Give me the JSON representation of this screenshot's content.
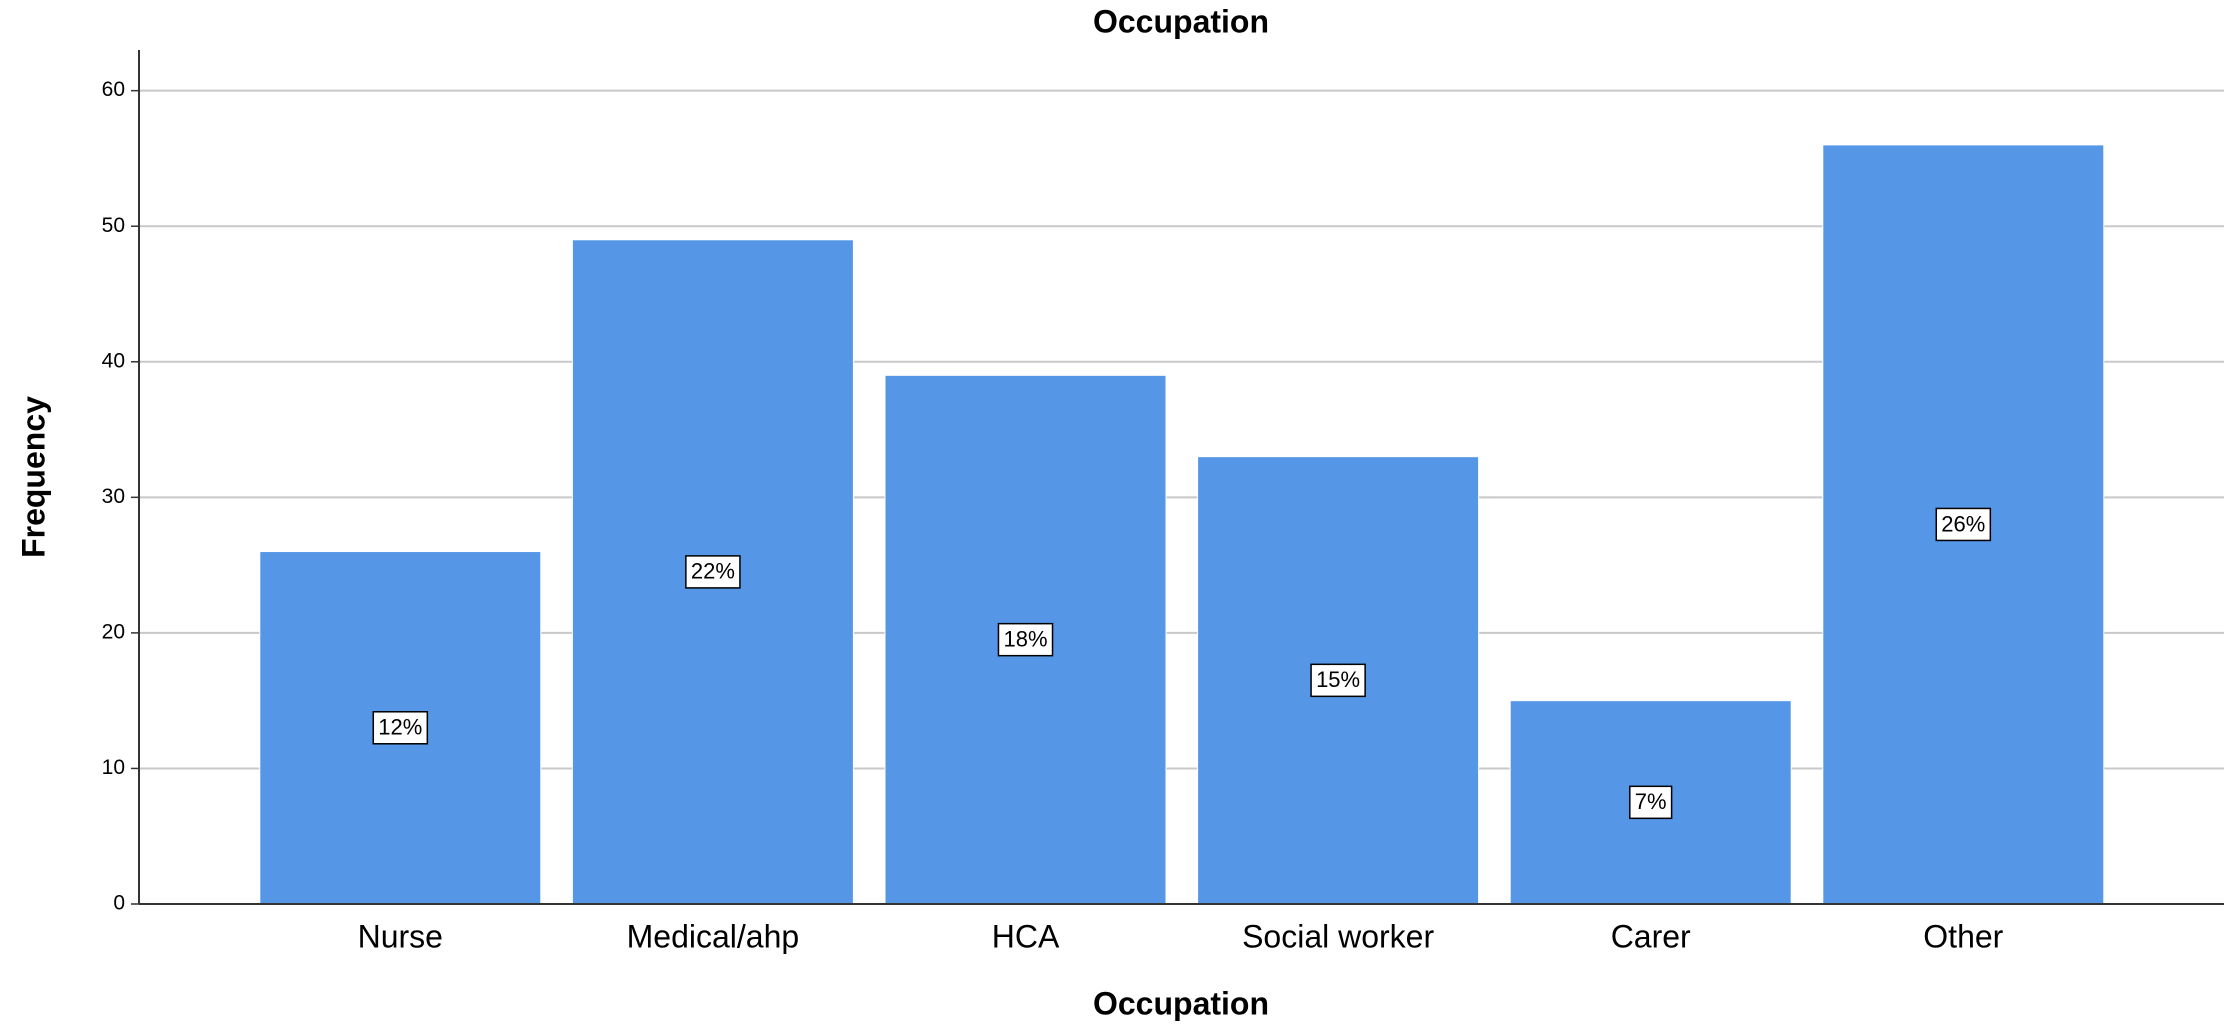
{
  "chart_data": {
    "type": "bar",
    "title": "Occupation",
    "x_label": "Occupation",
    "y_label": "Frequency",
    "categories": [
      "Nurse",
      "Medical/ahp",
      "HCA",
      "Social worker",
      "Carer",
      "Other"
    ],
    "values": [
      26,
      49,
      39,
      33,
      15,
      56
    ],
    "data_labels": [
      "12%",
      "22%",
      "18%",
      "15%",
      "7%",
      "26%"
    ],
    "color": "#5596e6",
    "ylim": [
      0,
      63
    ],
    "yticks": [
      0,
      10,
      20,
      30,
      40,
      50,
      60
    ],
    "grid": true
  }
}
